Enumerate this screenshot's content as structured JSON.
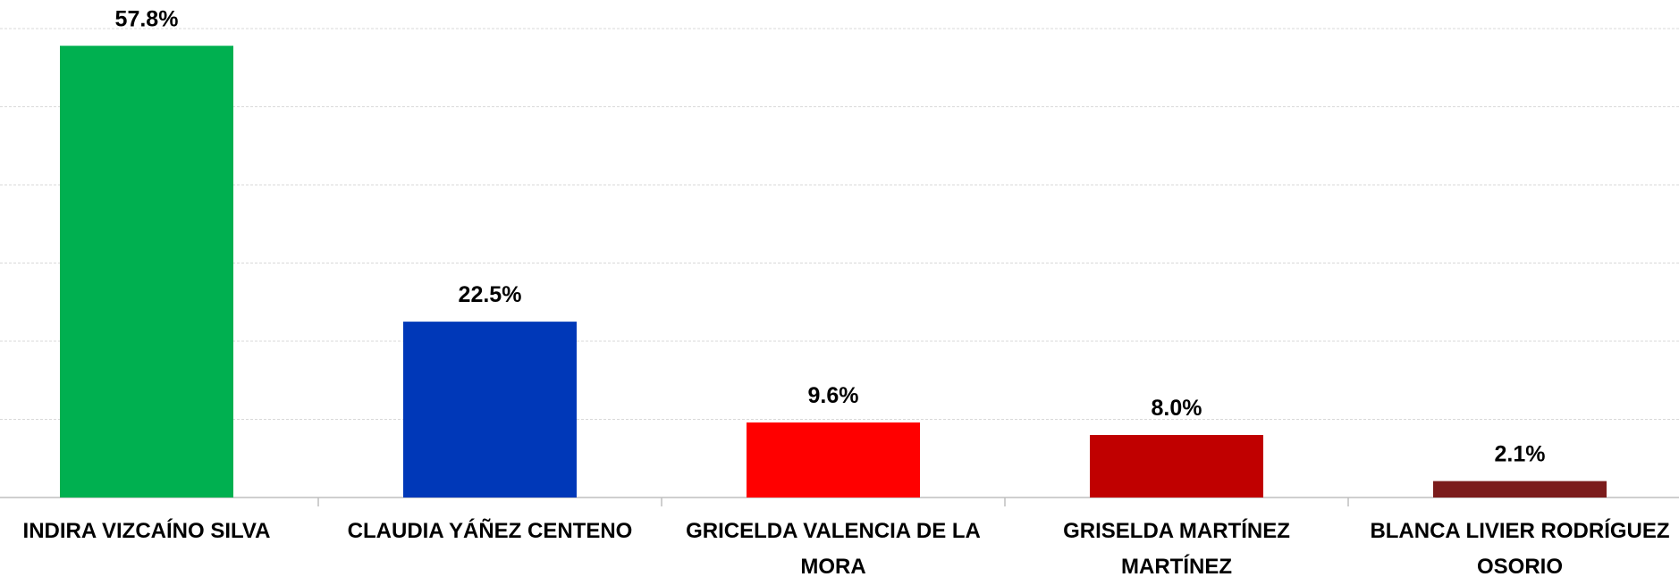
{
  "chart_data": {
    "type": "bar",
    "categories": [
      "INDIRA VIZCAÍNO SILVA",
      "CLAUDIA YÁÑEZ CENTENO",
      "GRICELDA VALENCIA DE LA MORA",
      "GRISELDA MARTÍNEZ MARTÍNEZ",
      "BLANCA LIVIER RODRÍGUEZ OSORIO"
    ],
    "values": [
      57.8,
      22.5,
      9.6,
      8.0,
      2.1
    ],
    "value_labels": [
      "57.8%",
      "22.5%",
      "9.6%",
      "8.0%",
      "2.1%"
    ],
    "colors": [
      "#00b050",
      "#0038b8",
      "#ff0000",
      "#c00000",
      "#7b1c1c"
    ],
    "ylim": [
      0,
      60
    ],
    "yticks": [
      0,
      10,
      20,
      30,
      40,
      50,
      60
    ],
    "grid": true
  }
}
